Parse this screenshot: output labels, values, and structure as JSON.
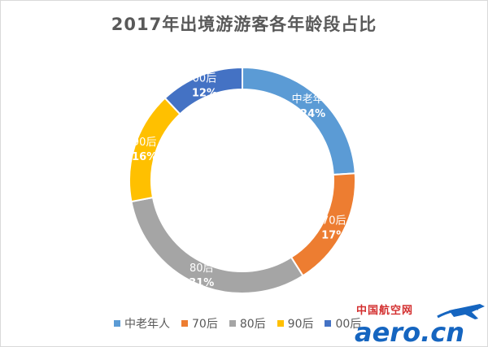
{
  "chart_data": {
    "type": "pie",
    "donut": true,
    "title": "2017年出境游游客各年龄段占比",
    "categories": [
      "中老年人",
      "70后",
      "80后",
      "90后",
      "00后"
    ],
    "values": [
      24,
      17,
      31,
      16,
      12
    ],
    "value_labels": [
      "24%",
      "17%",
      "31%",
      "16%",
      "12%"
    ],
    "colors": [
      "#5b9bd5",
      "#ed7d31",
      "#a5a5a5",
      "#ffc000",
      "#4472c4"
    ],
    "legend_position": "bottom"
  },
  "watermark": {
    "top_text": "中国航空网",
    "main_text": "aero.cn",
    "colors": {
      "top": "#d32f2f",
      "main": "#1565c0",
      "plane": "#1565c0"
    }
  }
}
